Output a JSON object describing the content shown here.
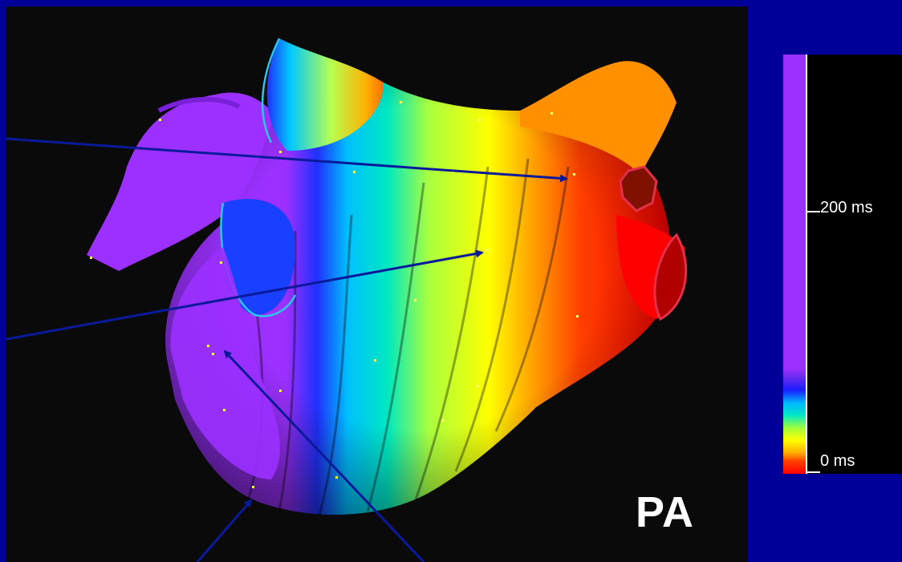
{
  "view": {
    "label": "PA"
  },
  "colors": {
    "background": "#000099",
    "viewport": "#0a0a0a",
    "arrow": "#0a1a9a",
    "valve_outline_cyan": "#2bc7e6",
    "valve_outline_red": "#e2304a"
  },
  "scale": {
    "gradient": [
      "#9b30ff",
      "#9b30ff",
      "#6a2cf0",
      "#1a1cff",
      "#00b4ff",
      "#00e8c8",
      "#9eff3c",
      "#ffff00",
      "#ffae00",
      "#ff4000",
      "#ff0000"
    ],
    "ticks": [
      {
        "label": "200 ms",
        "value_ms": 200
      },
      {
        "label": "0 ms",
        "value_ms": 0
      }
    ]
  }
}
